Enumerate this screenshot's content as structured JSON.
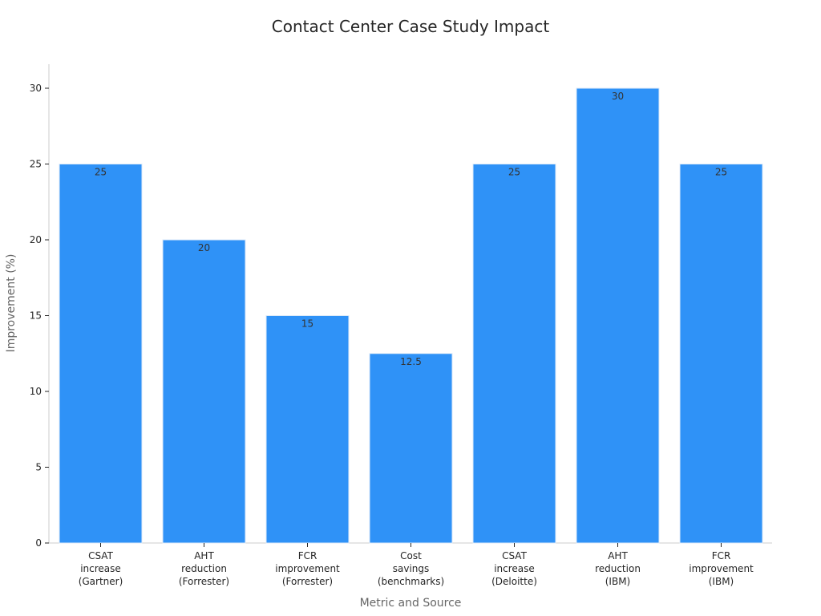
{
  "chart_data": {
    "type": "bar",
    "title": "Contact Center Case Study Impact",
    "xlabel": "Metric and Source",
    "ylabel": "Improvement (%)",
    "categories": [
      [
        "CSAT",
        "increase",
        "(Gartner)"
      ],
      [
        "AHT",
        "reduction",
        "(Forrester)"
      ],
      [
        "FCR",
        "improvement",
        "(Forrester)"
      ],
      [
        "Cost",
        "savings",
        "(benchmarks)"
      ],
      [
        "CSAT",
        "increase",
        "(Deloitte)"
      ],
      [
        "AHT",
        "reduction",
        "(IBM)"
      ],
      [
        "FCR",
        "improvement",
        "(IBM)"
      ]
    ],
    "values": [
      25,
      20,
      15,
      12.5,
      25,
      30,
      25
    ],
    "value_labels": [
      "25",
      "20",
      "15",
      "12.5",
      "25",
      "30",
      "25"
    ],
    "yticks": [
      0,
      5,
      10,
      15,
      20,
      25,
      30
    ],
    "ylim": [
      0,
      31.6
    ],
    "grid": false,
    "colors": {
      "bar": "#2f92f7",
      "bar_edge": "#dceaf8",
      "axis": "#cccccc",
      "tick": "#262626"
    }
  }
}
